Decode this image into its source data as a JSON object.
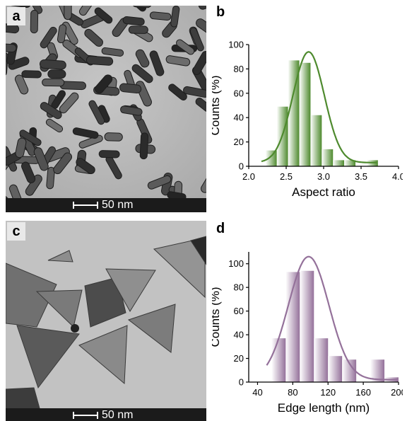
{
  "panels": {
    "a": {
      "letter": "a",
      "scale_label": "50 nm"
    },
    "b": {
      "letter": "b"
    },
    "c": {
      "letter": "c",
      "scale_label": "50 nm"
    },
    "d": {
      "letter": "d"
    }
  },
  "chart_data": [
    {
      "type": "bar",
      "panel": "b",
      "xlabel": "Aspect ratio",
      "ylabel": "Counts (%)",
      "xlim": [
        2.0,
        4.0
      ],
      "ylim": [
        0,
        100
      ],
      "xticks": [
        "2.0",
        "2.5",
        "3.0",
        "3.5",
        "4.0"
      ],
      "yticks": [
        "0",
        "20",
        "40",
        "60",
        "80",
        "100"
      ],
      "bin_width": 0.15,
      "x": [
        2.3,
        2.45,
        2.6,
        2.75,
        2.9,
        3.05,
        3.2,
        3.35,
        3.5,
        3.65
      ],
      "values": [
        13,
        49,
        87,
        85,
        42,
        14,
        5,
        5,
        0,
        5
      ],
      "fit": {
        "type": "gaussian",
        "center": 2.8,
        "peak": 94,
        "sigma": 0.21,
        "baseline": 3
      },
      "color": "#4e8a2e",
      "grid": false
    },
    {
      "type": "bar",
      "panel": "d",
      "xlabel": "Edge length (nm)",
      "ylabel": "Counts (%)",
      "xlim": [
        30,
        200
      ],
      "ylim": [
        0,
        110
      ],
      "xticks": [
        "40",
        "80",
        "120",
        "160",
        "200"
      ],
      "yticks": [
        "0",
        "20",
        "40",
        "60",
        "80",
        "100"
      ],
      "bin_width": 16,
      "x": [
        64,
        80,
        96,
        112,
        128,
        144,
        160,
        176,
        192
      ],
      "values": [
        37,
        93,
        94,
        37,
        22,
        19,
        0,
        19,
        4
      ],
      "fit": {
        "type": "gaussian",
        "center": 98,
        "peak": 106,
        "sigma": 23,
        "baseline": 2
      },
      "color": "#94719a",
      "grid": false
    }
  ]
}
